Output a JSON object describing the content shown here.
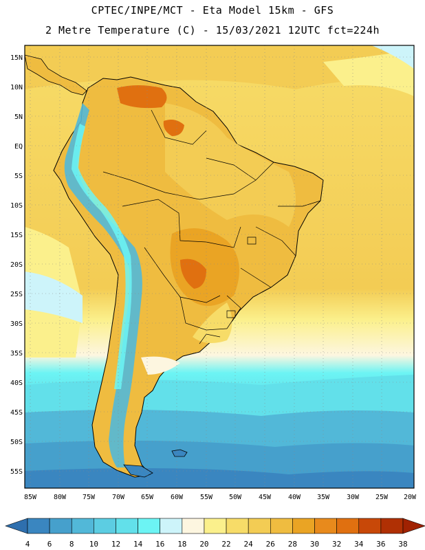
{
  "header": {
    "line1": "CPTEC/INPE/MCT -  Eta Model 15km - GFS",
    "line2": "2 Metre Temperature (C) - 15/03/2021 12UTC fct=224h"
  },
  "axes": {
    "lat_labels": [
      "15N",
      "10N",
      "5N",
      "EQ",
      "5S",
      "10S",
      "15S",
      "20S",
      "25S",
      "30S",
      "35S",
      "40S",
      "45S",
      "50S",
      "55S"
    ],
    "lon_labels": [
      "85W",
      "80W",
      "75W",
      "70W",
      "65W",
      "60W",
      "55W",
      "50W",
      "45W",
      "40W",
      "35W",
      "30W",
      "25W",
      "20W"
    ]
  },
  "colorbar": {
    "ticks": [
      "4",
      "6",
      "8",
      "10",
      "12",
      "14",
      "16",
      "18",
      "20",
      "22",
      "24",
      "26",
      "28",
      "30",
      "32",
      "34",
      "36",
      "38"
    ],
    "colors": [
      "#2e6fae",
      "#3a86c0",
      "#46a0cc",
      "#52b8d8",
      "#5ccde2",
      "#62e0ea",
      "#6cf4f4",
      "#cdf4fa",
      "#fdf6e0",
      "#fbf08c",
      "#f7dc68",
      "#f3cc54",
      "#efbc40",
      "#eaa424",
      "#e88a1c",
      "#e07010",
      "#c84808",
      "#b03004",
      "#a02202"
    ]
  },
  "legend_colors": {
    "ocean_tropical": "#f7dc68",
    "ocean_temperate": "#fdf6e0",
    "land_hot": "#efbc40",
    "land_warm": "#f3cc54",
    "andes": "#52b8d8",
    "southern_ocean": "#3a86c0"
  }
}
